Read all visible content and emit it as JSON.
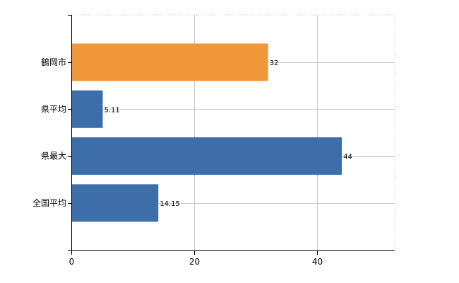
{
  "chart_data": {
    "type": "bar",
    "orientation": "horizontal",
    "categories": [
      "鶴岡市",
      "県平均",
      "県最大",
      "全国平均"
    ],
    "values": [
      32,
      5.11,
      44,
      14.15
    ],
    "value_labels": [
      "32",
      "5.11",
      "44",
      "14.15"
    ],
    "xlim": [
      0,
      52.6
    ],
    "x_ticks": [
      0,
      20,
      40
    ],
    "x_tick_labels": [
      "0",
      "20",
      "40"
    ],
    "grid": true,
    "colors": {
      "highlight": "#F0973A",
      "default": "#3D6EAA",
      "highlight_index": 0
    }
  }
}
